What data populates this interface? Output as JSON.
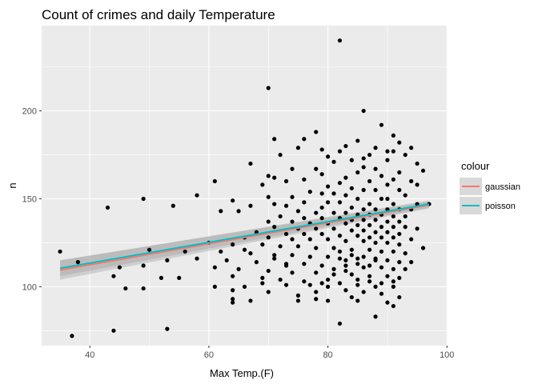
{
  "chart_data": {
    "type": "scatter",
    "title": "Count of crimes and daily Temperature",
    "xlabel": "Max Temp.(F)",
    "ylabel": "n",
    "xlim": [
      31.9,
      100.1
    ],
    "ylim": [
      66.5,
      248.5
    ],
    "x_ticks": [
      40,
      60,
      80,
      100
    ],
    "y_ticks": [
      100,
      150,
      200
    ],
    "x_minor_ticks": [
      30,
      50,
      70,
      90
    ],
    "y_minor_ticks": [
      75,
      125,
      175,
      225
    ],
    "grid": true,
    "legend": {
      "title": "colour",
      "position": "right",
      "entries": [
        {
          "name": "gaussian",
          "color": "#F8766D"
        },
        {
          "name": "poisson",
          "color": "#00BFC4"
        }
      ]
    },
    "colors": {
      "panel": "#EBEBEB",
      "grid_major": "#FFFFFF",
      "points": "#000000",
      "band": "#999999"
    },
    "fits": [
      {
        "name": "gaussian",
        "color": "#F8766D",
        "x": [
          35,
          97
        ],
        "y": [
          109.5,
          146.5
        ],
        "se_lower": [
          104,
          144.5
        ],
        "se_upper": [
          115,
          148.5
        ]
      },
      {
        "name": "poisson",
        "color": "#00BFC4",
        "x": [
          35,
          97
        ],
        "y": [
          110.5,
          147
        ],
        "se_lower": [
          106,
          145
        ],
        "se_upper": [
          115,
          149
        ]
      }
    ],
    "points": [
      [
        82,
        240
      ],
      [
        70,
        213
      ],
      [
        86,
        200
      ],
      [
        89,
        192
      ],
      [
        78,
        188
      ],
      [
        91,
        186
      ],
      [
        71,
        184
      ],
      [
        76,
        184
      ],
      [
        85,
        183
      ],
      [
        92,
        182
      ],
      [
        83,
        180
      ],
      [
        94,
        179
      ],
      [
        75,
        179
      ],
      [
        88,
        179
      ],
      [
        79,
        178
      ],
      [
        82,
        177
      ],
      [
        91,
        177
      ],
      [
        90,
        177
      ],
      [
        87,
        175
      ],
      [
        93,
        175
      ],
      [
        72,
        175
      ],
      [
        80,
        174
      ],
      [
        86,
        173
      ],
      [
        84,
        172
      ],
      [
        90,
        172
      ],
      [
        81,
        171
      ],
      [
        95,
        170
      ],
      [
        67,
        170
      ],
      [
        86,
        168
      ],
      [
        88,
        167
      ],
      [
        74,
        167
      ],
      [
        78,
        167
      ],
      [
        96,
        166
      ],
      [
        85,
        165
      ],
      [
        92,
        165
      ],
      [
        79,
        164
      ],
      [
        89,
        163
      ],
      [
        70,
        163
      ],
      [
        71,
        162
      ],
      [
        83,
        162
      ],
      [
        91,
        161
      ],
      [
        76,
        161
      ],
      [
        87,
        160
      ],
      [
        94,
        160
      ],
      [
        61,
        160
      ],
      [
        73,
        160
      ],
      [
        82,
        159
      ],
      [
        95,
        158
      ],
      [
        69,
        158
      ],
      [
        90,
        158
      ],
      [
        80,
        157
      ],
      [
        84,
        156
      ],
      [
        86,
        155
      ],
      [
        88,
        155
      ],
      [
        92,
        155
      ],
      [
        77,
        154
      ],
      [
        79,
        153
      ],
      [
        81,
        153
      ],
      [
        83,
        152
      ],
      [
        93,
        152
      ],
      [
        58,
        152
      ],
      [
        70,
        151
      ],
      [
        74,
        151
      ],
      [
        85,
        150
      ],
      [
        89,
        150
      ],
      [
        90,
        150
      ],
      [
        49,
        150
      ],
      [
        64,
        149
      ],
      [
        76,
        148
      ],
      [
        80,
        148
      ],
      [
        82,
        148
      ],
      [
        87,
        147
      ],
      [
        91,
        147
      ],
      [
        95,
        147
      ],
      [
        97,
        147
      ],
      [
        71,
        147
      ],
      [
        73,
        146
      ],
      [
        79,
        145
      ],
      [
        54,
        146
      ],
      [
        67,
        146
      ],
      [
        84,
        145
      ],
      [
        86,
        144
      ],
      [
        88,
        144
      ],
      [
        90,
        144
      ],
      [
        92,
        144
      ],
      [
        94,
        144
      ],
      [
        75,
        143
      ],
      [
        62,
        143
      ],
      [
        65,
        143
      ],
      [
        78,
        142
      ],
      [
        81,
        142
      ],
      [
        83,
        142
      ],
      [
        85,
        141
      ],
      [
        87,
        141
      ],
      [
        89,
        141
      ],
      [
        91,
        140
      ],
      [
        93,
        140
      ],
      [
        43,
        145
      ],
      [
        72,
        140
      ],
      [
        76,
        139
      ],
      [
        79,
        139
      ],
      [
        82,
        139
      ],
      [
        84,
        138
      ],
      [
        86,
        138
      ],
      [
        88,
        138
      ],
      [
        90,
        137
      ],
      [
        92,
        137
      ],
      [
        70,
        137
      ],
      [
        74,
        137
      ],
      [
        77,
        136
      ],
      [
        80,
        136
      ],
      [
        83,
        136
      ],
      [
        85,
        135
      ],
      [
        87,
        135
      ],
      [
        89,
        134
      ],
      [
        91,
        134
      ],
      [
        93,
        134
      ],
      [
        95,
        133
      ],
      [
        71,
        134
      ],
      [
        75,
        133
      ],
      [
        78,
        133
      ],
      [
        81,
        133
      ],
      [
        84,
        132
      ],
      [
        86,
        132
      ],
      [
        88,
        131
      ],
      [
        90,
        131
      ],
      [
        92,
        130
      ],
      [
        68,
        131
      ],
      [
        73,
        130
      ],
      [
        76,
        130
      ],
      [
        79,
        130
      ],
      [
        82,
        129
      ],
      [
        85,
        129
      ],
      [
        87,
        128
      ],
      [
        89,
        128
      ],
      [
        91,
        128
      ],
      [
        94,
        127
      ],
      [
        66,
        128
      ],
      [
        70,
        128
      ],
      [
        74,
        127
      ],
      [
        77,
        127
      ],
      [
        80,
        127
      ],
      [
        83,
        126
      ],
      [
        86,
        126
      ],
      [
        88,
        125
      ],
      [
        90,
        125
      ],
      [
        92,
        124
      ],
      [
        96,
        122
      ],
      [
        60,
        125
      ],
      [
        64,
        124
      ],
      [
        69,
        124
      ],
      [
        72,
        123
      ],
      [
        75,
        123
      ],
      [
        78,
        122
      ],
      [
        81,
        122
      ],
      [
        84,
        121
      ],
      [
        87,
        121
      ],
      [
        89,
        120
      ],
      [
        91,
        120
      ],
      [
        93,
        119
      ],
      [
        50,
        121
      ],
      [
        56,
        120
      ],
      [
        62,
        120
      ],
      [
        67,
        119
      ],
      [
        71,
        118
      ],
      [
        74,
        118
      ],
      [
        77,
        117
      ],
      [
        80,
        117
      ],
      [
        82,
        116
      ],
      [
        85,
        116
      ],
      [
        88,
        115
      ],
      [
        90,
        115
      ],
      [
        92,
        114
      ],
      [
        94,
        114
      ],
      [
        35,
        120
      ],
      [
        38,
        114
      ],
      [
        53,
        115
      ],
      [
        58,
        116
      ],
      [
        63,
        115
      ],
      [
        68,
        114
      ],
      [
        73,
        113
      ],
      [
        76,
        113
      ],
      [
        79,
        112
      ],
      [
        83,
        112
      ],
      [
        86,
        111
      ],
      [
        89,
        111
      ],
      [
        91,
        110
      ],
      [
        93,
        110
      ],
      [
        45,
        111
      ],
      [
        49,
        112
      ],
      [
        61,
        111
      ],
      [
        65,
        110
      ],
      [
        70,
        109
      ],
      [
        74,
        108
      ],
      [
        78,
        108
      ],
      [
        81,
        107
      ],
      [
        84,
        107
      ],
      [
        87,
        106
      ],
      [
        90,
        106
      ],
      [
        92,
        105
      ],
      [
        44,
        106
      ],
      [
        52,
        105
      ],
      [
        55,
        105
      ],
      [
        64,
        106
      ],
      [
        69,
        105
      ],
      [
        72,
        104
      ],
      [
        76,
        103
      ],
      [
        79,
        102
      ],
      [
        82,
        102
      ],
      [
        85,
        101
      ],
      [
        88,
        100
      ],
      [
        91,
        100
      ],
      [
        61,
        100
      ],
      [
        66,
        100
      ],
      [
        73,
        101
      ],
      [
        77,
        101
      ],
      [
        80,
        100
      ],
      [
        83,
        98
      ],
      [
        86,
        97
      ],
      [
        89,
        96
      ],
      [
        46,
        99
      ],
      [
        49,
        99
      ],
      [
        64,
        98
      ],
      [
        70,
        97
      ],
      [
        75,
        95
      ],
      [
        78,
        93
      ],
      [
        84,
        94
      ],
      [
        92,
        94
      ],
      [
        64,
        93
      ],
      [
        67,
        92
      ],
      [
        75,
        92
      ],
      [
        80,
        92
      ],
      [
        85,
        92
      ],
      [
        90,
        91
      ],
      [
        64,
        91
      ],
      [
        91,
        89
      ],
      [
        88,
        83
      ],
      [
        82,
        79
      ],
      [
        53,
        76
      ],
      [
        44,
        75
      ],
      [
        37,
        72
      ],
      [
        82,
        120
      ],
      [
        84,
        118
      ],
      [
        86,
        117
      ],
      [
        88,
        116
      ],
      [
        83,
        115
      ],
      [
        85,
        113
      ],
      [
        87,
        112
      ],
      [
        81,
        110
      ],
      [
        83,
        109
      ],
      [
        85,
        104
      ],
      [
        87,
        103
      ],
      [
        89,
        102
      ],
      [
        91,
        103
      ],
      [
        78,
        97
      ],
      [
        80,
        104
      ],
      [
        73,
        112
      ],
      [
        71,
        116
      ],
      [
        69,
        102
      ],
      [
        66,
        121
      ]
    ]
  }
}
